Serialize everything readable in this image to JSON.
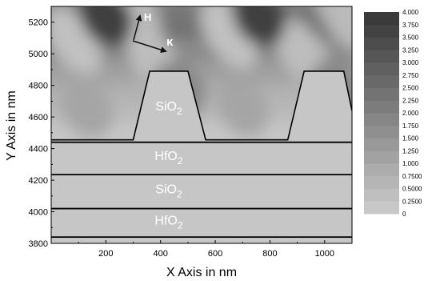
{
  "chart_data": {
    "type": "heatmap",
    "title": "",
    "xlabel": "X Axis in nm",
    "ylabel": "Y Axis in nm",
    "xlim": [
      0,
      1100
    ],
    "ylim": [
      3800,
      5300
    ],
    "x_ticks": [
      200,
      400,
      600,
      800,
      1000
    ],
    "y_ticks": [
      3800,
      4000,
      4200,
      4400,
      4600,
      4800,
      5000,
      5200
    ],
    "colorbar": {
      "levels": [
        0,
        0.25,
        0.5,
        0.75,
        1.0,
        1.25,
        1.5,
        1.75,
        2.0,
        2.25,
        2.5,
        2.75,
        3.0,
        3.25,
        3.5,
        3.75,
        4.0
      ],
      "labels": [
        "0",
        "0.2500",
        "0.5000",
        "0.7500",
        "1.000",
        "1.250",
        "1.500",
        "1.750",
        "2.000",
        "2.250",
        "2.500",
        "2.750",
        "3.000",
        "3.250",
        "3.500",
        "3.750",
        "4.000"
      ],
      "color_low": "#c8c8c8",
      "color_high": "#3a3a3a"
    },
    "layers": [
      {
        "label": "HfO",
        "sub": "2",
        "y_bottom": 3840,
        "y_top": 4020
      },
      {
        "label": "SiO",
        "sub": "2",
        "y_bottom": 4020,
        "y_top": 4235
      },
      {
        "label": "HfO",
        "sub": "2",
        "y_bottom": 4235,
        "y_top": 4440
      }
    ],
    "boundaries_y": [
      3840,
      4020,
      4235,
      4440
    ],
    "grating": {
      "label": "SiO",
      "sub": "2",
      "base_y": 4455,
      "top_y": 4890,
      "profile_x": [
        0,
        300,
        360,
        500,
        565,
        865,
        925,
        1070,
        1100
      ],
      "profile_y": [
        4455,
        4455,
        4890,
        4890,
        4455,
        4455,
        4890,
        4890,
        4640
      ]
    },
    "vectors": {
      "H_label": "H",
      "kappa_label": "κ"
    }
  }
}
